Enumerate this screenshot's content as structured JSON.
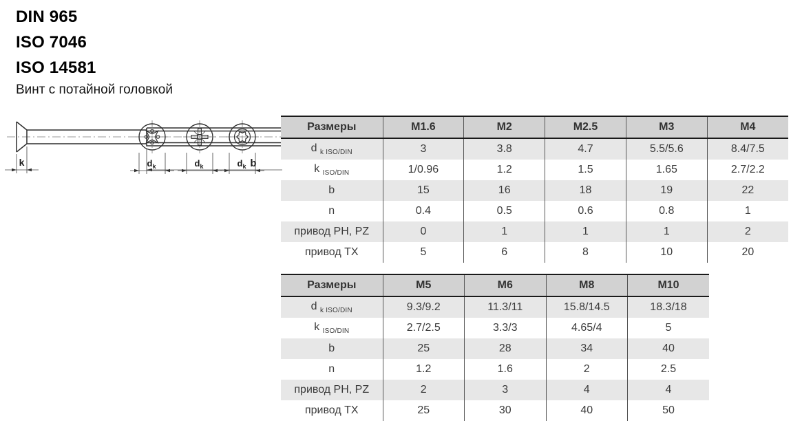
{
  "page": {
    "standards": [
      "DIN 965",
      "ISO 7046",
      "ISO 14581"
    ],
    "subtitle": "Винт с потайной головкой"
  },
  "drawing": {
    "labels": {
      "k": "k",
      "b": "b",
      "dk_main": "d",
      "dk_sub": "k"
    }
  },
  "colors": {
    "header_bg": "#d2d2d2",
    "shaded_row_bg": "#e7e7e7",
    "text": "#3b3b3b",
    "thick_border": "#1a1a1a",
    "grid_line": "#555555"
  },
  "tables": [
    {
      "name": "spec-table-small-sizes",
      "header": [
        "Размеры",
        "M1.6",
        "M2",
        "M2.5",
        "M3",
        "M4"
      ],
      "rows": [
        {
          "label_main": "d",
          "label_sub": "k ISO/DIN",
          "shaded": true,
          "values": [
            "3",
            "3.8",
            "4.7",
            "5.5/5.6",
            "8.4/7.5"
          ]
        },
        {
          "label_main": "k",
          "label_sub": "ISO/DIN",
          "shaded": false,
          "values": [
            "1/0.96",
            "1.2",
            "1.5",
            "1.65",
            "2.7/2.2"
          ]
        },
        {
          "label_main": "b",
          "label_sub": "",
          "shaded": true,
          "values": [
            "15",
            "16",
            "18",
            "19",
            "22"
          ]
        },
        {
          "label_main": "n",
          "label_sub": "",
          "shaded": false,
          "values": [
            "0.4",
            "0.5",
            "0.6",
            "0.8",
            "1"
          ]
        },
        {
          "label_main": "привод PH, PZ",
          "label_sub": "",
          "shaded": true,
          "values": [
            "0",
            "1",
            "1",
            "1",
            "2"
          ]
        },
        {
          "label_main": "привод TX",
          "label_sub": "",
          "shaded": false,
          "values": [
            "5",
            "6",
            "8",
            "10",
            "20"
          ]
        }
      ]
    },
    {
      "name": "spec-table-large-sizes",
      "header": [
        "Размеры",
        "M5",
        "M6",
        "M8",
        "M10"
      ],
      "rows": [
        {
          "label_main": "d",
          "label_sub": "k ISO/DIN",
          "shaded": true,
          "values": [
            "9.3/9.2",
            "11.3/11",
            "15.8/14.5",
            "18.3/18"
          ]
        },
        {
          "label_main": "k",
          "label_sub": "ISO/DIN",
          "shaded": false,
          "values": [
            "2.7/2.5",
            "3.3/3",
            "4.65/4",
            "5"
          ]
        },
        {
          "label_main": "b",
          "label_sub": "",
          "shaded": true,
          "values": [
            "25",
            "28",
            "34",
            "40"
          ]
        },
        {
          "label_main": "n",
          "label_sub": "",
          "shaded": false,
          "values": [
            "1.2",
            "1.6",
            "2",
            "2.5"
          ]
        },
        {
          "label_main": "привод PH, PZ",
          "label_sub": "",
          "shaded": true,
          "values": [
            "2",
            "3",
            "4",
            "4"
          ]
        },
        {
          "label_main": "привод TX",
          "label_sub": "",
          "shaded": false,
          "values": [
            "25",
            "30",
            "40",
            "50"
          ]
        }
      ]
    }
  ]
}
